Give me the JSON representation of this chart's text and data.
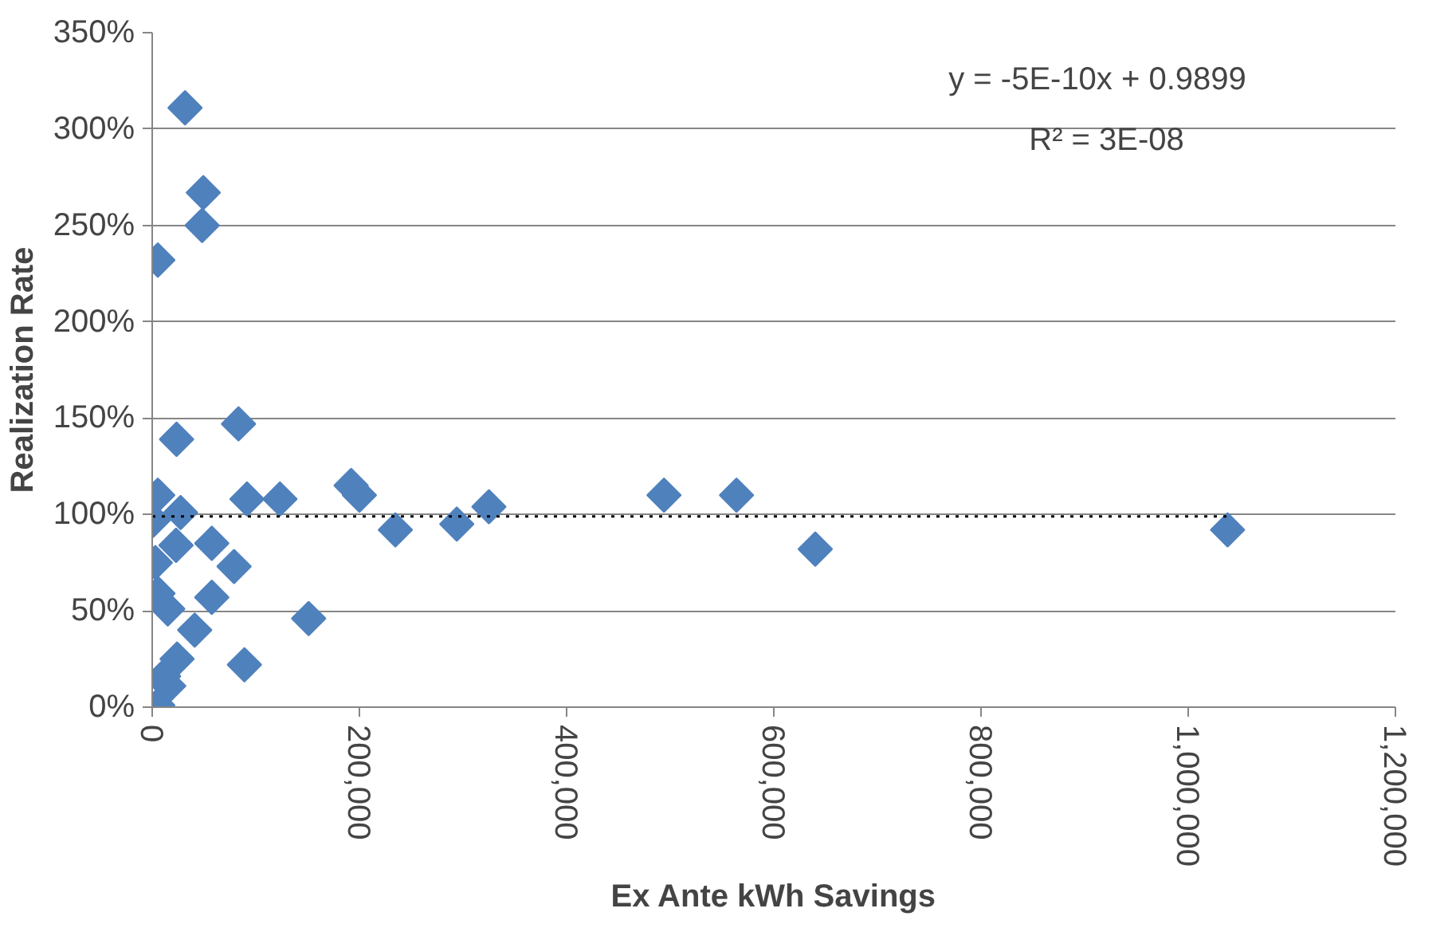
{
  "chart_data": {
    "type": "scatter",
    "xlabel": "Ex Ante kWh Savings",
    "ylabel": "Realization Rate",
    "annotations": [
      "y = -5E-10x + 0.9899",
      "R² = 3E-08"
    ],
    "series": [
      {
        "color": "#4f81bd",
        "marker": "diamond",
        "x": [
          31700,
          49300,
          48200,
          5400,
          23500,
          83300,
          5400,
          91500,
          123300,
          192000,
          200000,
          27400,
          1000,
          23000,
          57500,
          79000,
          3000,
          5600,
          15000,
          57500,
          41000,
          151000,
          24000,
          11000,
          16000,
          89000,
          5400,
          234700,
          294000,
          325000,
          494000,
          564000,
          640000,
          1038000
        ],
        "values": [
          311,
          267,
          250,
          232,
          139,
          147,
          110,
          108,
          108,
          115,
          110,
          101,
          97,
          84,
          85,
          73,
          75,
          59,
          51,
          57,
          40,
          46,
          25,
          16,
          11,
          22,
          1,
          92,
          95,
          104,
          110,
          110,
          82,
          92
        ]
      },
      {
        "type": "line",
        "color": "#000000",
        "line_style": "dotted",
        "marker": "none",
        "x": [
          0,
          1038000
        ],
        "values": [
          99,
          99
        ]
      }
    ],
    "xlim": [
      0,
      1200000
    ],
    "xticks": [
      {
        "value": 0,
        "label": "0"
      },
      {
        "value": 200000,
        "label": "200,000"
      },
      {
        "value": 400000,
        "label": "400,000"
      },
      {
        "value": 600000,
        "label": "600,000"
      },
      {
        "value": 800000,
        "label": "800,000"
      },
      {
        "value": 1000000,
        "label": "1,000,000"
      },
      {
        "value": 1200000,
        "label": "1,200,000"
      }
    ],
    "ylim": [
      0,
      350
    ],
    "yticks": [
      {
        "value": 0,
        "label": "0%"
      },
      {
        "value": 50,
        "label": "50%"
      },
      {
        "value": 100,
        "label": "100%"
      },
      {
        "value": 150,
        "label": "150%"
      },
      {
        "value": 200,
        "label": "200%"
      },
      {
        "value": 250,
        "label": "250%"
      },
      {
        "value": 300,
        "label": "300%"
      },
      {
        "value": 350,
        "label": "350%"
      }
    ],
    "grid": "y"
  }
}
